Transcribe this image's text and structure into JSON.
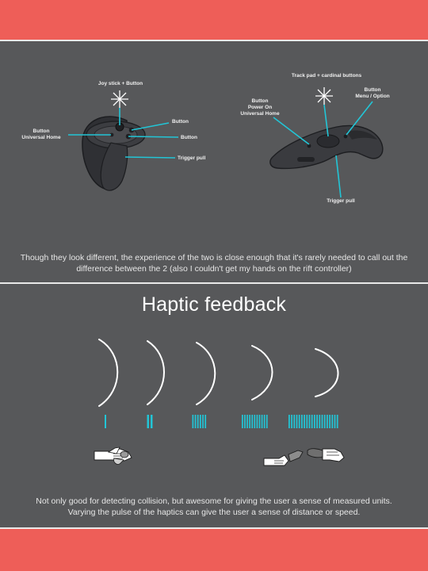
{
  "controllers": {
    "left": {
      "joystick_label": "Joy stick + Button",
      "home_label": "Button\nUniversal Home",
      "button1_label": "Button",
      "button2_label": "Button",
      "trigger_label": "Trigger pull"
    },
    "right": {
      "trackpad_label": "Track pad + cardinal buttons",
      "menu_label": "Button\nMenu / Option",
      "power_label": "Button\nPower On\nUniversal Home",
      "trigger_label": "Trigger pull"
    },
    "caption": "Though they look different, the experience of the two is close enough that it's rarely needed to call out the difference between the 2 (also I couldn't get my hands on the rift controller)"
  },
  "haptic": {
    "title": "Haptic feedback",
    "pulse_counts": [
      1,
      2,
      6,
      11,
      20
    ],
    "caption_line1": "Not only good for detecting collision, but awesome for giving the user a sense of measured units.",
    "caption_line2": "Varying the pulse of the haptics can give the user a sense of distance or speed."
  },
  "colors": {
    "accent": "#22c5d6",
    "band": "#ee5e58",
    "background": "#57585a"
  }
}
